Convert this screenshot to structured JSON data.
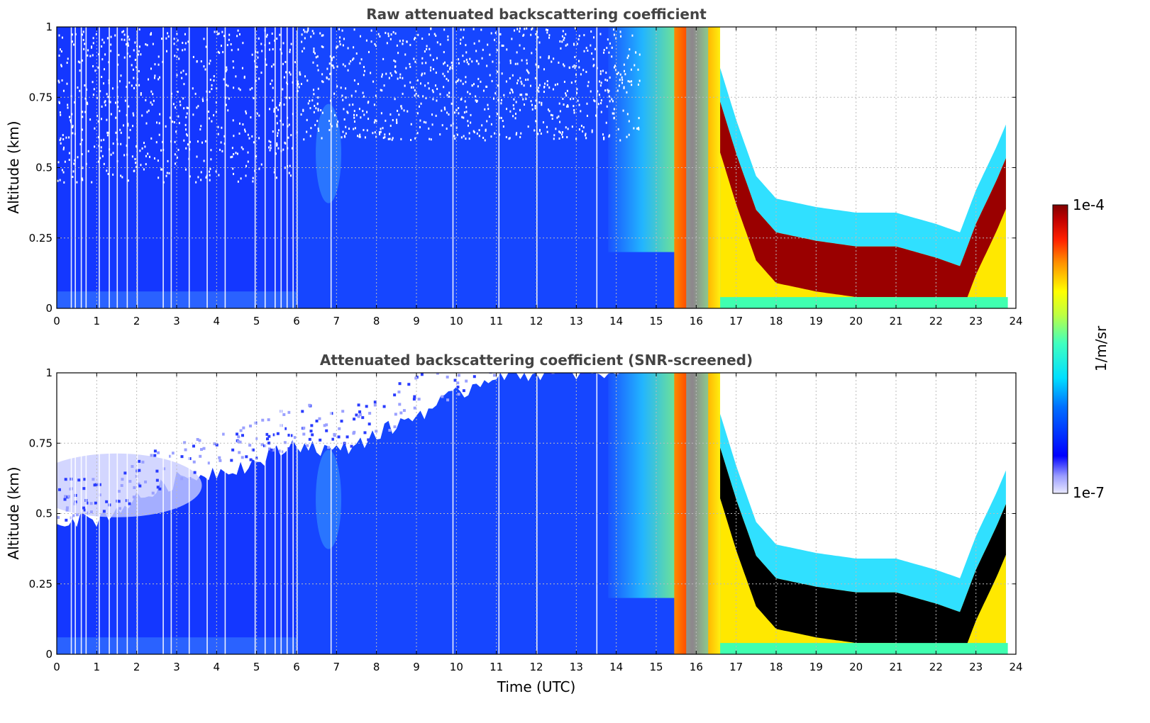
{
  "colorbar": {
    "label": "1/m/sr",
    "max_label": "1e-4",
    "min_label": "1e-7",
    "scale": "log",
    "colormap": "jet",
    "range": [
      1e-07,
      0.0001
    ]
  },
  "chart_data": [
    {
      "type": "heatmap",
      "title": "Raw attenuated backscattering coefficient",
      "xlabel": "",
      "ylabel": "Altitude (km)",
      "xlim": [
        0,
        24
      ],
      "ylim": [
        0,
        1
      ],
      "xticks": [
        "0",
        "1",
        "2",
        "3",
        "4",
        "5",
        "6",
        "7",
        "8",
        "9",
        "10",
        "11",
        "12",
        "13",
        "14",
        "15",
        "16",
        "17",
        "18",
        "19",
        "20",
        "21",
        "22",
        "23",
        "24"
      ],
      "yticks": [
        "0",
        "0.25",
        "0.5",
        "0.75",
        "1"
      ],
      "grid": true,
      "snr_screened": false,
      "features": [
        {
          "x": [
            0,
            6
          ],
          "description": "low noisy backscatter ~1e-6, noise above 0.5 km"
        },
        {
          "x": [
            6,
            15.5
          ],
          "description": "boundary layer backscatter ~1e-6 to 3e-6"
        },
        {
          "x": [
            14,
            15.5
          ],
          "description": "increasing backscatter, cyan to yellow aloft"
        },
        {
          "x": [
            15.5,
            16.6
          ],
          "description": "high backscatter (fog/cloud) full column ~1e-4"
        },
        {
          "x": [
            16.6,
            23.8
          ],
          "description": "cloud layer descending from 0.78 km to 0.15 km, rising again after 22.6"
        }
      ],
      "cloud_top_km": {
        "x": [
          16.5,
          17,
          17.5,
          18,
          19,
          20,
          21,
          22,
          22.6,
          23,
          23.5,
          23.8
        ],
        "y": [
          0.78,
          0.55,
          0.35,
          0.27,
          0.24,
          0.22,
          0.22,
          0.18,
          0.15,
          0.3,
          0.45,
          0.55
        ]
      }
    },
    {
      "type": "heatmap",
      "title": "Attenuated backscattering coefficient (SNR-screened)",
      "xlabel": "Time (UTC)",
      "ylabel": "Altitude (km)",
      "xlim": [
        0,
        24
      ],
      "ylim": [
        0,
        1
      ],
      "xticks": [
        "0",
        "1",
        "2",
        "3",
        "4",
        "5",
        "6",
        "7",
        "8",
        "9",
        "10",
        "11",
        "12",
        "13",
        "14",
        "15",
        "16",
        "17",
        "18",
        "19",
        "20",
        "21",
        "22",
        "23",
        "24"
      ],
      "yticks": [
        "0",
        "0.25",
        "0.5",
        "0.75",
        "1"
      ],
      "grid": true,
      "snr_screened": true,
      "valid_top_km": {
        "x": [
          0,
          1,
          2,
          3,
          4,
          5,
          6,
          7,
          8,
          9,
          10,
          11,
          12,
          13,
          14
        ],
        "y": [
          0.48,
          0.48,
          0.55,
          0.62,
          0.65,
          0.68,
          0.75,
          0.72,
          0.78,
          0.85,
          0.92,
          1.0,
          1.0,
          1.0,
          1.0
        ]
      },
      "cloud_top_km": {
        "x": [
          16.5,
          17,
          17.5,
          18,
          19,
          20,
          21,
          22,
          22.6,
          23,
          23.5,
          23.8
        ],
        "y": [
          0.78,
          0.55,
          0.35,
          0.27,
          0.24,
          0.22,
          0.22,
          0.18,
          0.15,
          0.3,
          0.45,
          0.55
        ]
      }
    }
  ]
}
